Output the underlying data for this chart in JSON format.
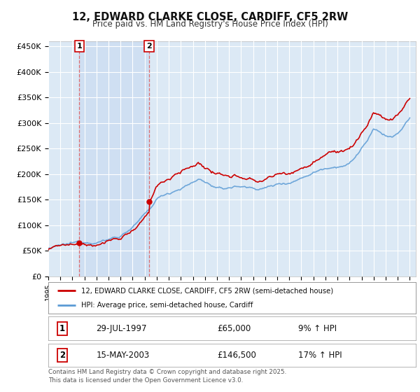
{
  "title": "12, EDWARD CLARKE CLOSE, CARDIFF, CF5 2RW",
  "subtitle": "Price paid vs. HM Land Registry's House Price Index (HPI)",
  "ylim": [
    0,
    460000
  ],
  "yticks": [
    0,
    50000,
    100000,
    150000,
    200000,
    250000,
    300000,
    350000,
    400000,
    450000
  ],
  "ytick_labels": [
    "£0",
    "£50K",
    "£100K",
    "£150K",
    "£200K",
    "£250K",
    "£300K",
    "£350K",
    "£400K",
    "£450K"
  ],
  "sale1_date_num": 1997.57,
  "sale1_price": 65000,
  "sale1_label": "29-JUL-1997",
  "sale1_price_str": "£65,000",
  "sale1_hpi": "9% ↑ HPI",
  "sale2_date_num": 2003.37,
  "sale2_price": 146500,
  "sale2_label": "15-MAY-2003",
  "sale2_price_str": "£146,500",
  "sale2_hpi": "17% ↑ HPI",
  "red_line_color": "#cc0000",
  "blue_line_color": "#5b9bd5",
  "marker_color": "#cc0000",
  "dashed_line_color": "#e06060",
  "fill_color": "#c5d8f0",
  "plot_bg": "#dce9f5",
  "grid_color": "#ffffff",
  "fig_bg": "#ffffff",
  "legend_label_red": "12, EDWARD CLARKE CLOSE, CARDIFF, CF5 2RW (semi-detached house)",
  "legend_label_blue": "HPI: Average price, semi-detached house, Cardiff",
  "footer": "Contains HM Land Registry data © Crown copyright and database right 2025.\nThis data is licensed under the Open Government Licence v3.0.",
  "xmin": 1995.0,
  "xmax": 2025.5
}
